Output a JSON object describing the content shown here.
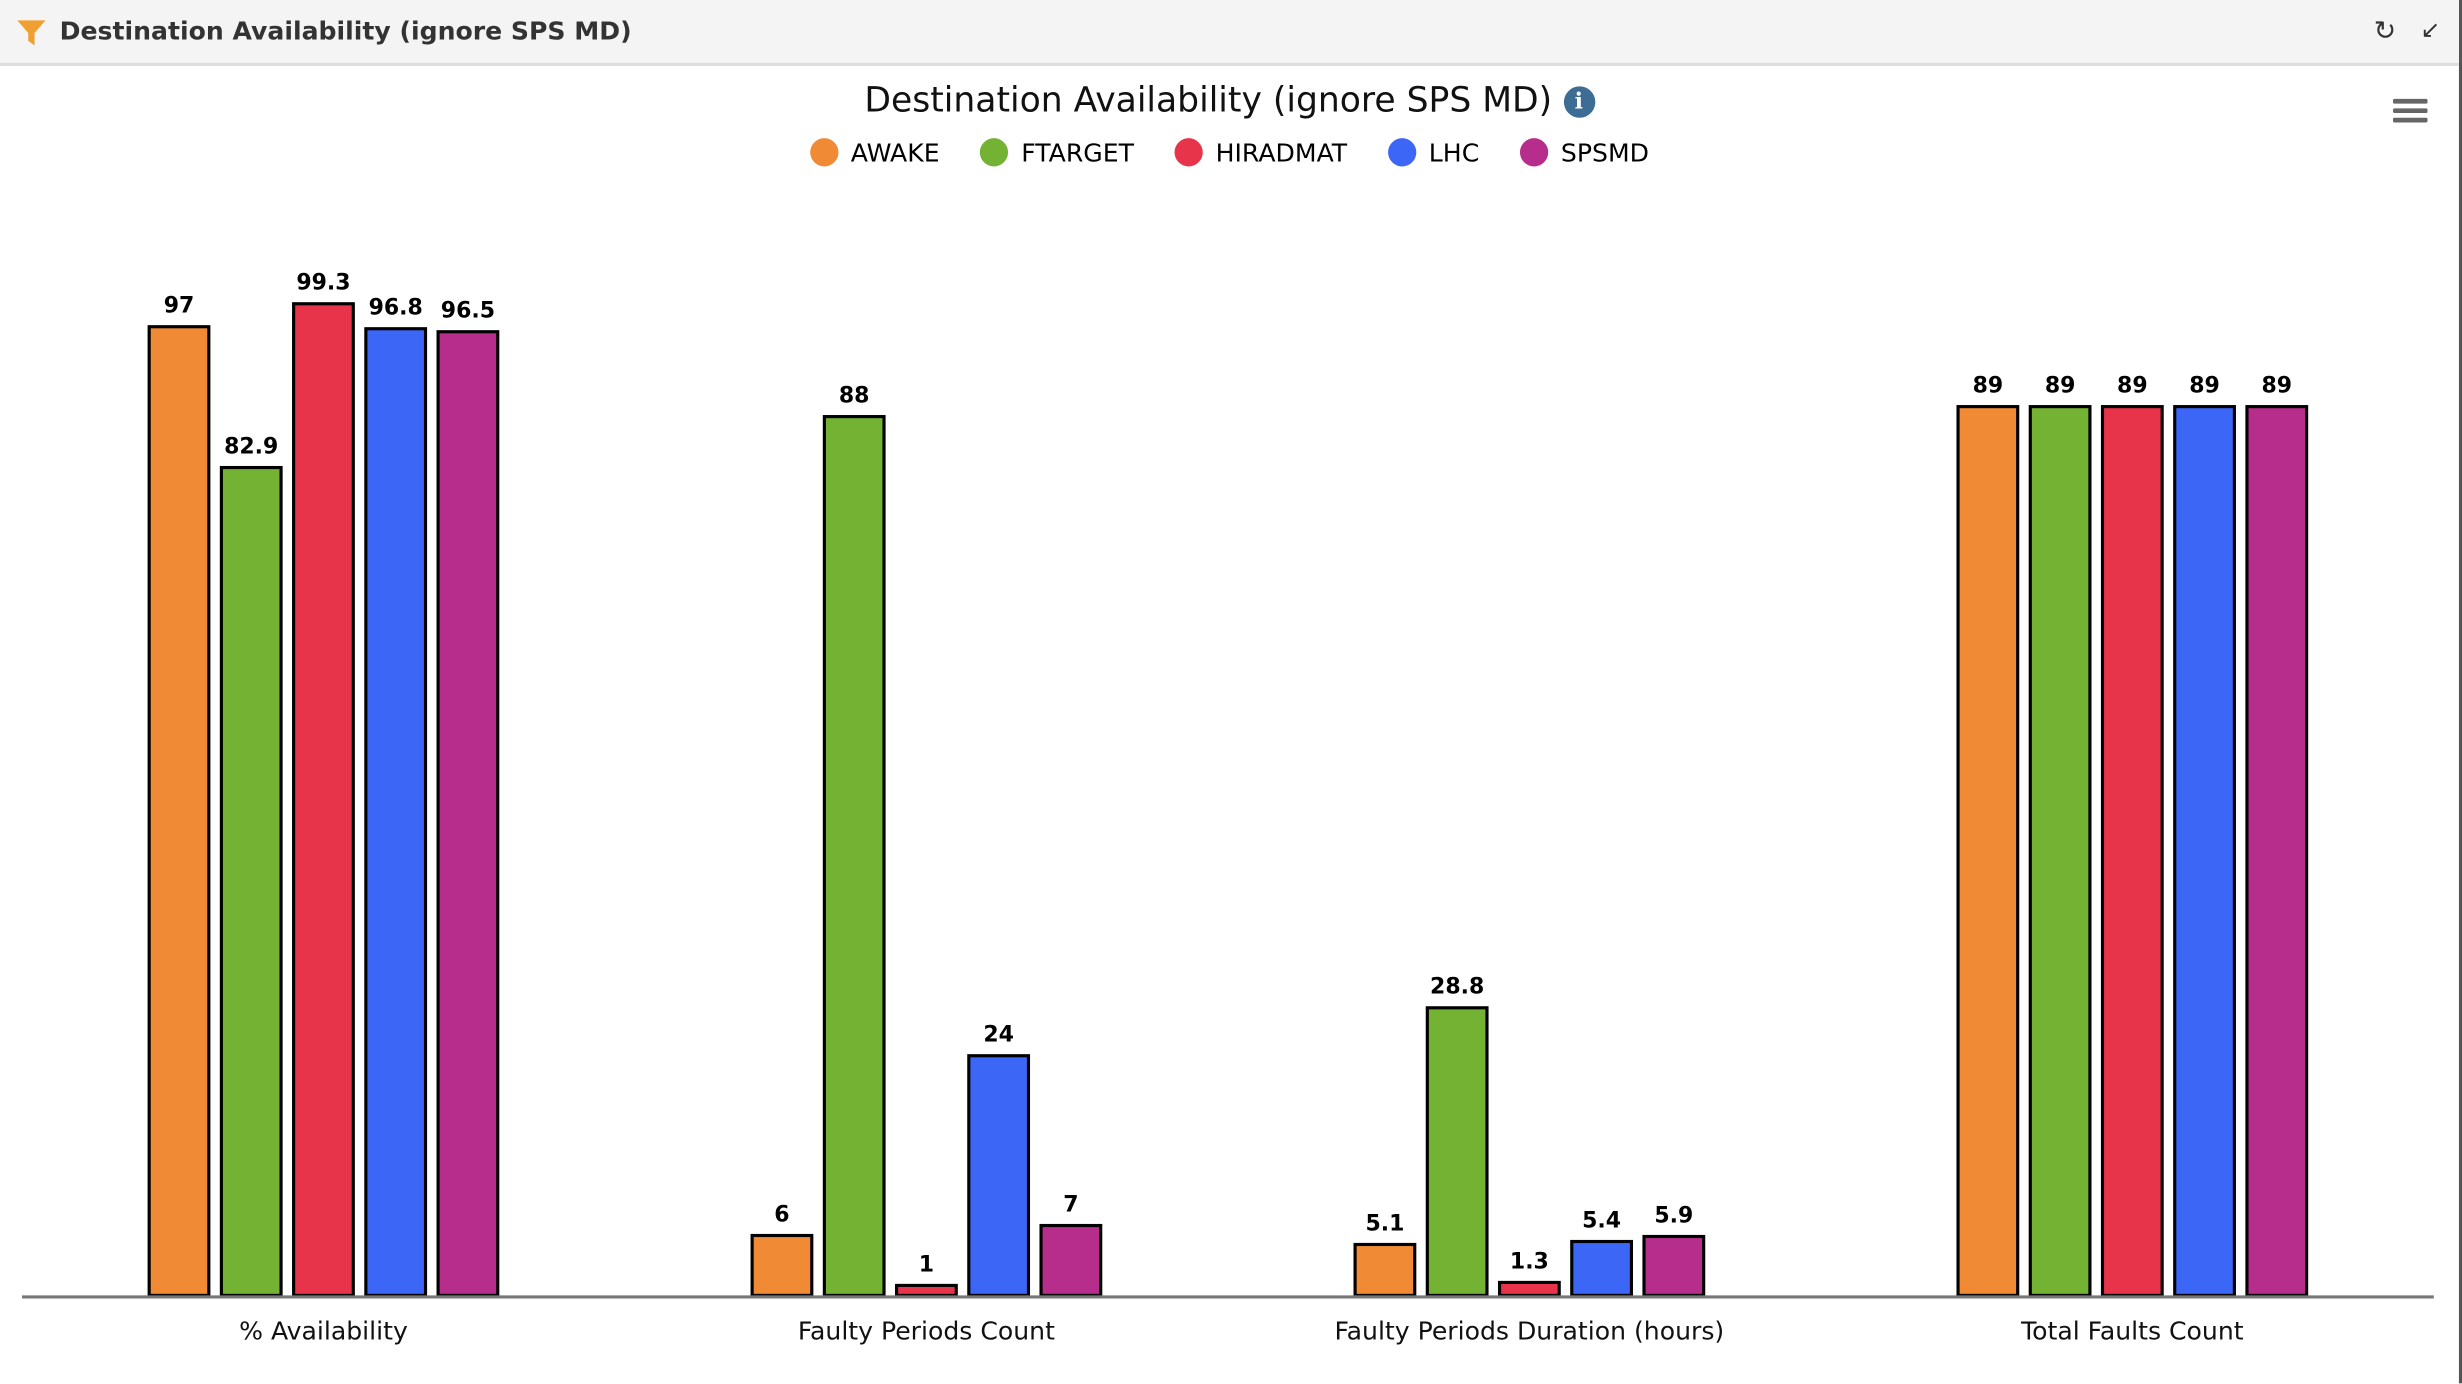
{
  "panel": {
    "title": "Destination Availability (ignore SPS MD)",
    "icons": [
      "funnel-icon",
      "refresh-icon",
      "compress-icon"
    ]
  },
  "chart_data": {
    "type": "bar",
    "title": "Destination Availability (ignore SPS MD)",
    "categories": [
      "% Availability",
      "Faulty Periods Count",
      "Faulty Periods Duration (hours)",
      "Total Faults Count"
    ],
    "series": [
      {
        "name": "AWAKE",
        "color": "#f08a35",
        "values": [
          97,
          6,
          5.1,
          89
        ]
      },
      {
        "name": "FTARGET",
        "color": "#74b234",
        "values": [
          82.9,
          88,
          28.8,
          89
        ]
      },
      {
        "name": "HIRADMAT",
        "color": "#e8344a",
        "values": [
          99.3,
          1,
          1.3,
          89
        ]
      },
      {
        "name": "LHC",
        "color": "#3c66f5",
        "values": [
          96.8,
          24,
          5.4,
          89
        ]
      },
      {
        "name": "SPSMD",
        "color": "#b72d8b",
        "values": [
          96.5,
          7,
          5.9,
          89
        ]
      }
    ],
    "ylim": [
      0,
      100
    ],
    "grid": false,
    "legend": "top-center",
    "xlabel": "",
    "ylabel": ""
  }
}
